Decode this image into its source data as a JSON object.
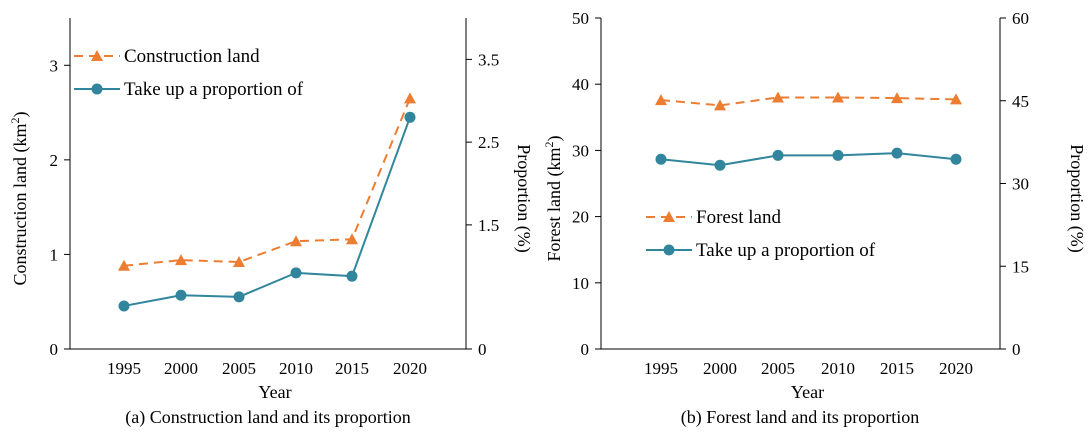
{
  "chart_data": [
    {
      "type": "line",
      "caption": "(a) Construction land and its proportion",
      "xlabel": "Year",
      "ylabel": "Construction land (km",
      "ylabel_sup": "2",
      "ylabel_suffix": ")",
      "y2label": "Proportion (%)",
      "categories": [
        "1995",
        "2000",
        "2005",
        "2010",
        "2015",
        "2020"
      ],
      "ylim": [
        0,
        3.5
      ],
      "yticks": [
        0,
        1,
        2,
        3
      ],
      "ytick_labels": [
        "0",
        "1",
        "2",
        "3"
      ],
      "y2lim": [
        0,
        4
      ],
      "y2ticks": [
        0,
        1.5,
        2.5,
        3.5
      ],
      "y2tick_labels": [
        "0",
        "1.5",
        "2.5",
        "3.5"
      ],
      "legend_position": "top-left",
      "grid": false,
      "series": [
        {
          "name": "Construction land",
          "axis": "left",
          "marker": "triangle",
          "dash": true,
          "color": "#ED7D31",
          "values": [
            0.88,
            0.94,
            0.92,
            1.14,
            1.16,
            2.65
          ]
        },
        {
          "name": "Take up a proportion of",
          "axis": "right",
          "marker": "circle",
          "dash": false,
          "color": "#31859C",
          "values": [
            0.52,
            0.65,
            0.63,
            0.92,
            0.88,
            2.8
          ]
        }
      ]
    },
    {
      "type": "line",
      "caption": "(b) Forest land and its proportion",
      "xlabel": "Year",
      "ylabel": "Forest land (km",
      "ylabel_sup": "2",
      "ylabel_suffix": ")",
      "y2label": "Proportion (%)",
      "categories": [
        "1995",
        "2000",
        "2005",
        "2010",
        "2015",
        "2020"
      ],
      "ylim": [
        0,
        50
      ],
      "yticks": [
        0,
        10,
        20,
        30,
        40,
        50
      ],
      "ytick_labels": [
        "0",
        "10",
        "20",
        "30",
        "40",
        "50"
      ],
      "y2lim": [
        0,
        60
      ],
      "y2ticks": [
        0,
        15,
        30,
        45,
        60
      ],
      "y2tick_labels": [
        "0",
        "15",
        "30",
        "45",
        "60"
      ],
      "legend_position": "center-right",
      "grid": false,
      "series": [
        {
          "name": "Forest land",
          "axis": "left",
          "marker": "triangle",
          "dash": true,
          "color": "#ED7D31",
          "values": [
            37.6,
            36.8,
            38.0,
            38.0,
            37.9,
            37.7
          ]
        },
        {
          "name": "Take up a proportion of",
          "axis": "right",
          "marker": "circle",
          "dash": false,
          "color": "#31859C",
          "values": [
            34.4,
            33.3,
            35.1,
            35.1,
            35.5,
            34.4
          ]
        }
      ]
    }
  ]
}
